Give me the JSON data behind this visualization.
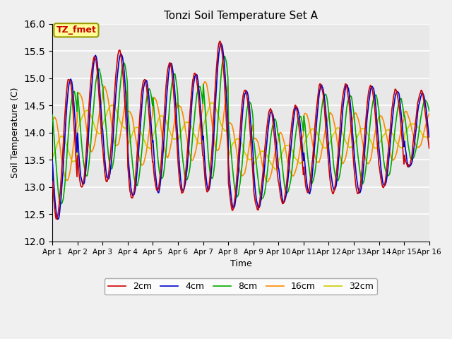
{
  "title": "Tonzi Soil Temperature Set A",
  "xlabel": "Time",
  "ylabel": "Soil Temperature (C)",
  "ylim": [
    12.0,
    16.0
  ],
  "yticks": [
    12.0,
    12.5,
    13.0,
    13.5,
    14.0,
    14.5,
    15.0,
    15.5,
    16.0
  ],
  "xtick_labels": [
    "Apr 1",
    "Apr 2",
    "Apr 3",
    "Apr 4",
    "Apr 5",
    "Apr 6",
    "Apr 7",
    "Apr 8",
    "Apr 9",
    "Apr 10",
    "Apr 11",
    "Apr 12",
    "Apr 13",
    "Apr 14",
    "Apr 15",
    "Apr 16"
  ],
  "colors": {
    "2cm": "#cc0000",
    "4cm": "#0000cc",
    "8cm": "#00aa00",
    "16cm": "#ff8800",
    "32cm": "#cccc00"
  },
  "legend_label": "TZ_fmet",
  "legend_bg": "#ffff99",
  "legend_border": "#999900",
  "bg_color": "#e8e8e8",
  "line_width": 1.2
}
